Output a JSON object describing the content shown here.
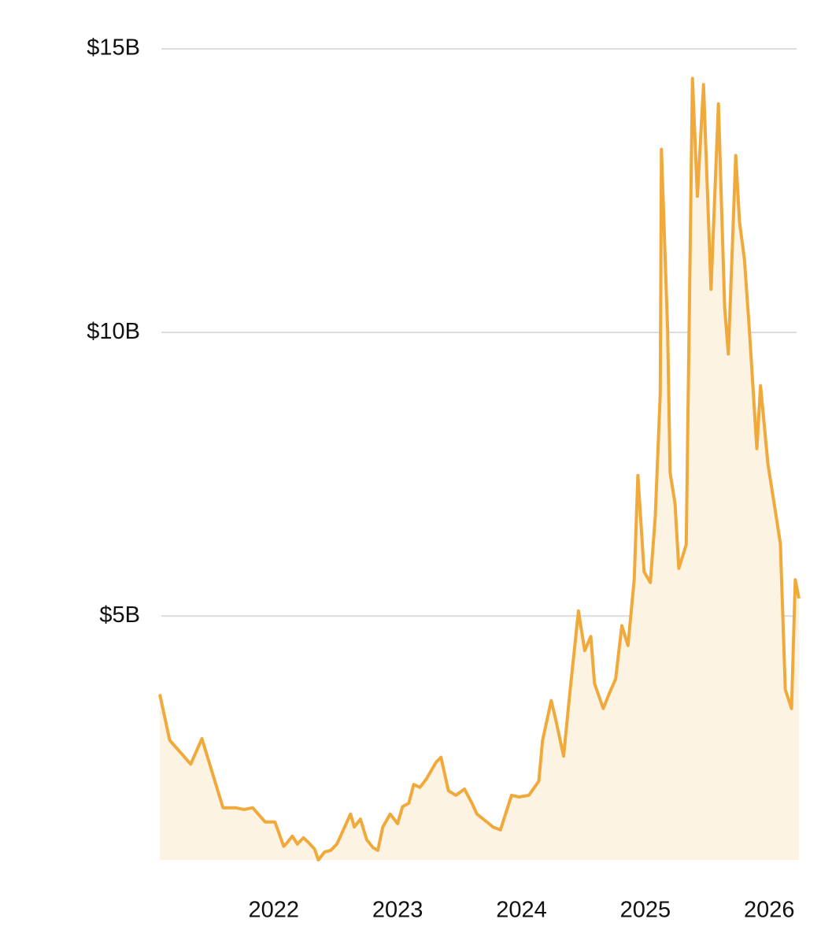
{
  "chart_data": {
    "type": "area",
    "x": [
      2021.08,
      2021.16,
      2021.33,
      2021.42,
      2021.59,
      2021.69,
      2021.76,
      2021.83,
      2021.93,
      2022.01,
      2022.08,
      2022.11,
      2022.15,
      2022.19,
      2022.24,
      2022.28,
      2022.33,
      2022.36,
      2022.41,
      2022.46,
      2022.51,
      2022.55,
      2022.62,
      2022.65,
      2022.7,
      2022.75,
      2022.8,
      2022.84,
      2022.88,
      2022.94,
      2023.0,
      2023.04,
      2023.09,
      2023.13,
      2023.18,
      2023.23,
      2023.31,
      2023.35,
      2023.41,
      2023.47,
      2023.54,
      2023.6,
      2023.64,
      2023.72,
      2023.77,
      2023.83,
      2023.92,
      2023.98,
      2024.06,
      2024.14,
      2024.17,
      2024.24,
      2024.28,
      2024.34,
      2024.39,
      2024.46,
      2024.51,
      2024.56,
      2024.59,
      2024.66,
      2024.71,
      2024.76,
      2024.81,
      2024.86,
      2024.91,
      2024.94,
      2024.99,
      2025.04,
      2025.08,
      2025.12,
      2025.13,
      2025.18,
      2025.2,
      2025.24,
      2025.27,
      2025.33,
      2025.38,
      2025.42,
      2025.47,
      2025.53,
      2025.59,
      2025.64,
      2025.67,
      2025.73,
      2025.76,
      2025.8,
      2025.84,
      2025.9,
      2025.93,
      2025.99,
      2026.06,
      2026.09,
      2026.13,
      2026.18,
      2026.21,
      2026.24
    ],
    "series": [
      {
        "color": "#f0a93b",
        "fill": "#fdf3e3",
        "values": [
          3.62,
          2.81,
          2.39,
          2.84,
          1.62,
          1.62,
          1.59,
          1.62,
          1.37,
          1.37,
          0.94,
          1.01,
          1.12,
          0.98,
          1.09,
          1.01,
          0.89,
          0.7,
          0.84,
          0.87,
          0.98,
          1.17,
          1.51,
          1.28,
          1.42,
          1.06,
          0.92,
          0.87,
          1.28,
          1.51,
          1.34,
          1.64,
          1.7,
          2.03,
          1.98,
          2.12,
          2.42,
          2.51,
          1.92,
          1.84,
          1.95,
          1.7,
          1.51,
          1.37,
          1.28,
          1.23,
          1.84,
          1.81,
          1.84,
          2.09,
          2.81,
          3.51,
          3.14,
          2.53,
          3.64,
          5.09,
          4.39,
          4.64,
          3.81,
          3.37,
          3.64,
          3.89,
          4.83,
          4.48,
          5.64,
          7.48,
          5.78,
          5.59,
          6.76,
          8.92,
          13.23,
          10.03,
          7.53,
          6.98,
          5.84,
          6.26,
          14.48,
          12.4,
          14.37,
          10.76,
          14.03,
          10.45,
          9.62,
          13.12,
          11.95,
          11.28,
          10.03,
          7.95,
          9.06,
          7.67,
          6.7,
          6.28,
          3.7,
          3.37,
          5.64,
          5.31
        ]
      }
    ],
    "xlim": [
      2021.08,
      2026.24
    ],
    "xticks": [
      2022,
      2023,
      2024,
      2025,
      2026
    ],
    "ylim": [
      0.7,
      15
    ],
    "yticks": [
      {
        "value": 5,
        "label": "$5B"
      },
      {
        "value": 10,
        "label": "$10B"
      },
      {
        "value": 15,
        "label": "$15B"
      }
    ],
    "grid": true
  }
}
